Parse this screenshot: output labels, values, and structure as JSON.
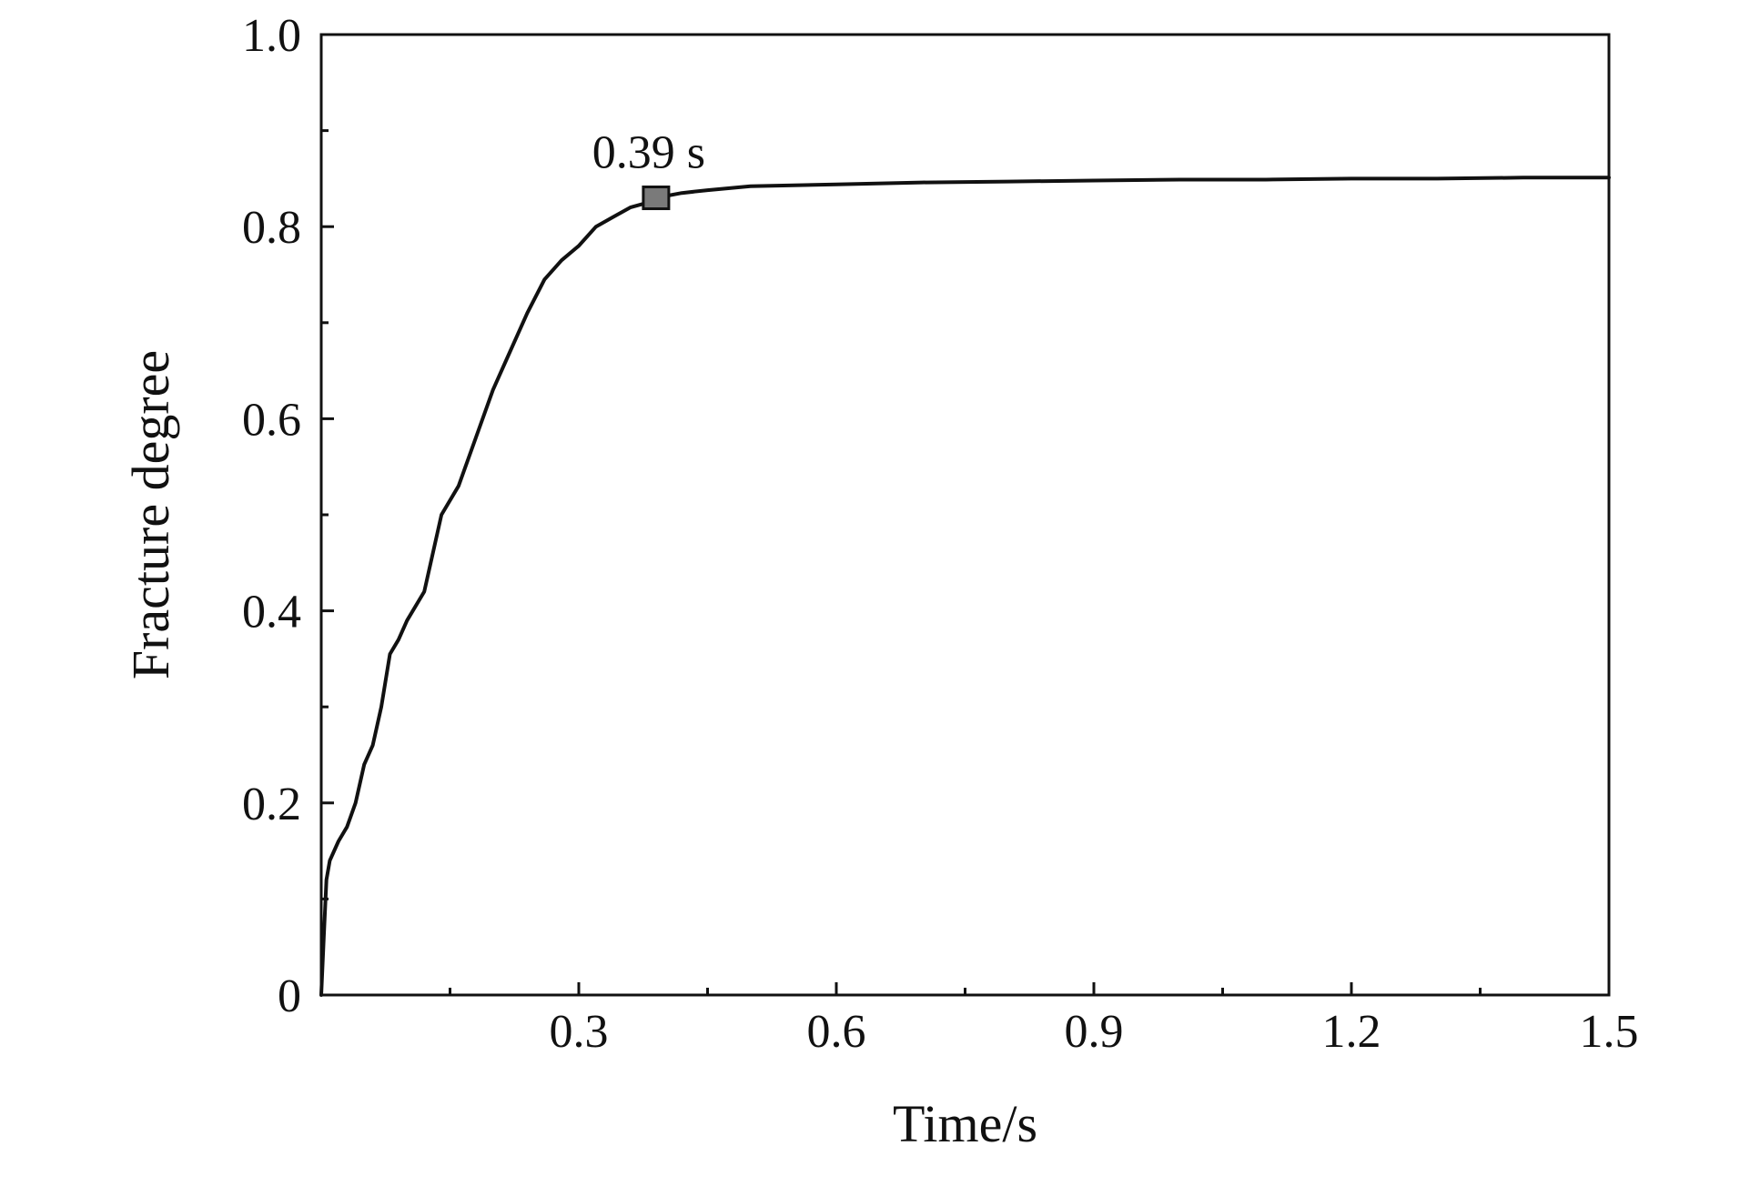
{
  "chart_data": {
    "type": "line",
    "title": "",
    "xlabel": "Time/s",
    "ylabel": "Fracture degree",
    "xlim": [
      0,
      1.5
    ],
    "ylim": [
      0,
      1.0
    ],
    "x_ticks": [
      0.3,
      0.6,
      0.9,
      1.2,
      1.5
    ],
    "x_tick_labels": [
      "0.3",
      "0.6",
      "0.9",
      "1.2",
      "1.5"
    ],
    "y_ticks": [
      0,
      0.2,
      0.4,
      0.6,
      0.8,
      1.0
    ],
    "y_tick_labels": [
      "0",
      "0.2",
      "0.4",
      "0.6",
      "0.8",
      "1.0"
    ],
    "grid": false,
    "legend": "none",
    "series": [
      {
        "x": [
          0.0,
          0.003,
          0.006,
          0.01,
          0.02,
          0.03,
          0.04,
          0.05,
          0.06,
          0.07,
          0.08,
          0.09,
          0.1,
          0.12,
          0.14,
          0.16,
          0.18,
          0.2,
          0.22,
          0.24,
          0.26,
          0.28,
          0.3,
          0.32,
          0.34,
          0.36,
          0.38,
          0.39,
          0.42,
          0.45,
          0.5,
          0.6,
          0.7,
          0.8,
          0.9,
          1.0,
          1.1,
          1.2,
          1.3,
          1.4,
          1.5
        ],
        "y": [
          0.0,
          0.06,
          0.12,
          0.14,
          0.16,
          0.175,
          0.2,
          0.24,
          0.26,
          0.3,
          0.355,
          0.37,
          0.39,
          0.42,
          0.5,
          0.53,
          0.58,
          0.63,
          0.67,
          0.71,
          0.745,
          0.765,
          0.78,
          0.8,
          0.81,
          0.82,
          0.825,
          0.83,
          0.835,
          0.838,
          0.842,
          0.844,
          0.846,
          0.847,
          0.848,
          0.849,
          0.849,
          0.85,
          0.85,
          0.851,
          0.851
        ],
        "color": "#111111"
      }
    ],
    "annotations": [
      {
        "text": "0.39 s",
        "x": 0.39,
        "y": 0.83,
        "marker": "square",
        "marker_color": "#7a7a7a"
      }
    ]
  }
}
